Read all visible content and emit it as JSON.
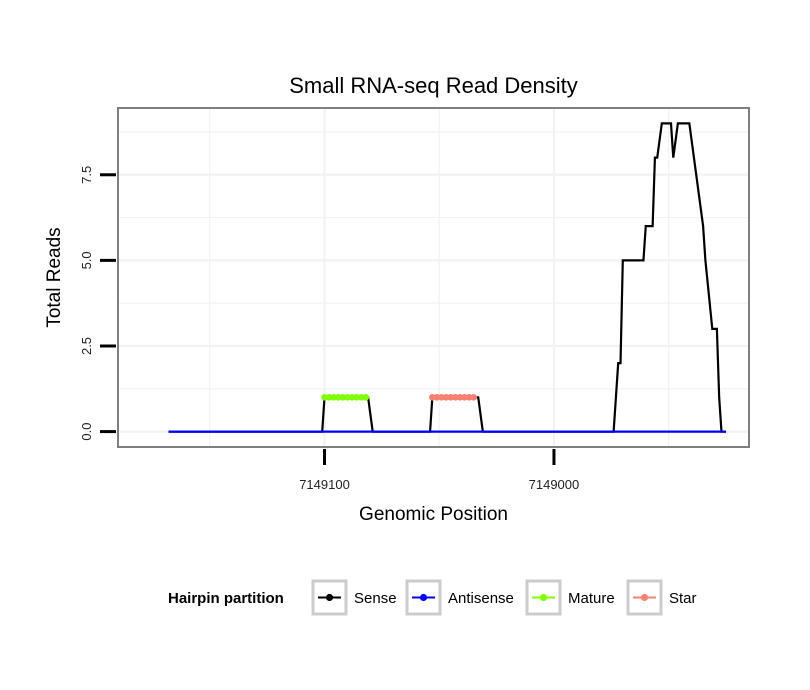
{
  "chart_data": {
    "type": "line",
    "title": "Small RNA-seq Read Density",
    "xlabel": "Genomic Position",
    "ylabel": "Total Reads",
    "x_reversed": true,
    "xlim": [
      7149190,
      7148915
    ],
    "ylim": [
      -0.45,
      9.45
    ],
    "x_ticks": [
      7149100,
      7149000
    ],
    "x_tick_labels": [
      "7149100",
      "7149000"
    ],
    "y_ticks": [
      0,
      2.5,
      5,
      7.5
    ],
    "y_tick_labels": [
      "0.0",
      "2.5",
      "5.0",
      "7.5"
    ],
    "grid": true,
    "legend": {
      "title": "Hairpin partition",
      "position": "bottom",
      "entries": [
        {
          "label": "Sense",
          "color": "#000000"
        },
        {
          "label": "Antisense",
          "color": "#0000ff"
        },
        {
          "label": "Mature",
          "color": "#7fff00"
        },
        {
          "label": "Star",
          "color": "#fa8072"
        }
      ]
    },
    "series": [
      {
        "name": "Sense",
        "color": "#000000",
        "points": [
          [
            7149168,
            0
          ],
          [
            7149101,
            0
          ],
          [
            7149100,
            1
          ],
          [
            7149081,
            1
          ],
          [
            7149079,
            0
          ],
          [
            7149054,
            0
          ],
          [
            7149053,
            1
          ],
          [
            7149033,
            1
          ],
          [
            7149031,
            0
          ],
          [
            7148974,
            0
          ],
          [
            7148972,
            2
          ],
          [
            7148971,
            2
          ],
          [
            7148970,
            5
          ],
          [
            7148961,
            5
          ],
          [
            7148960,
            6
          ],
          [
            7148957,
            6
          ],
          [
            7148956,
            8
          ],
          [
            7148955,
            8
          ],
          [
            7148953,
            9
          ],
          [
            7148949,
            9
          ],
          [
            7148948,
            8
          ],
          [
            7148946,
            9
          ],
          [
            7148941,
            9
          ],
          [
            7148939,
            8
          ],
          [
            7148937,
            7
          ],
          [
            7148935,
            6
          ],
          [
            7148934,
            5
          ],
          [
            7148931,
            3
          ],
          [
            7148929,
            3
          ],
          [
            7148928,
            1
          ],
          [
            7148927,
            0
          ],
          [
            7148925,
            0
          ]
        ]
      },
      {
        "name": "Antisense",
        "color": "#0000ff",
        "points": [
          [
            7149168,
            0
          ],
          [
            7148925,
            0
          ]
        ]
      },
      {
        "name": "Mature",
        "color": "#7fff00",
        "markers": true,
        "points": [
          [
            7149100,
            1
          ],
          [
            7149098,
            1
          ],
          [
            7149096,
            1
          ],
          [
            7149094,
            1
          ],
          [
            7149092,
            1
          ],
          [
            7149090,
            1
          ],
          [
            7149088,
            1
          ],
          [
            7149086,
            1
          ],
          [
            7149084,
            1
          ],
          [
            7149082,
            1
          ]
        ]
      },
      {
        "name": "Star",
        "color": "#fa8072",
        "markers": true,
        "points": [
          [
            7149053,
            1
          ],
          [
            7149051,
            1
          ],
          [
            7149049,
            1
          ],
          [
            7149047,
            1
          ],
          [
            7149045,
            1
          ],
          [
            7149043,
            1
          ],
          [
            7149041,
            1
          ],
          [
            7149039,
            1
          ],
          [
            7149037,
            1
          ],
          [
            7149035,
            1
          ]
        ]
      }
    ]
  }
}
